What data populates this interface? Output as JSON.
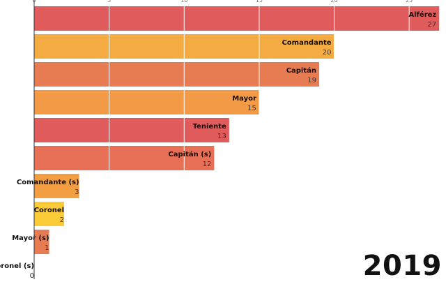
{
  "chart_data": {
    "type": "bar",
    "orientation": "horizontal",
    "title": "",
    "xlabel": "",
    "ylabel": "",
    "xlim": [
      0,
      27.5
    ],
    "x_ticks": [
      0,
      5,
      10,
      15,
      20,
      25
    ],
    "grid": true,
    "year": "2019",
    "bars": [
      {
        "label": "Alférez",
        "value": 27,
        "color": "#e05c5c"
      },
      {
        "label": "Comandante",
        "value": 20,
        "color": "#f4ab41"
      },
      {
        "label": "Capitán",
        "value": 19,
        "color": "#e77c53"
      },
      {
        "label": "Mayor",
        "value": 15,
        "color": "#f29a45"
      },
      {
        "label": "Teniente",
        "value": 13,
        "color": "#e05c5c"
      },
      {
        "label": "Capitán (s)",
        "value": 12,
        "color": "#e77056"
      },
      {
        "label": "Comandante (s)",
        "value": 3,
        "color": "#f29e43"
      },
      {
        "label": "Coronel",
        "value": 2,
        "color": "#fbcb38"
      },
      {
        "label": "Mayor (s)",
        "value": 1,
        "color": "#e77c53"
      },
      {
        "label": "Coronel (s)",
        "value": 0,
        "color": "#e05c5c"
      }
    ]
  }
}
